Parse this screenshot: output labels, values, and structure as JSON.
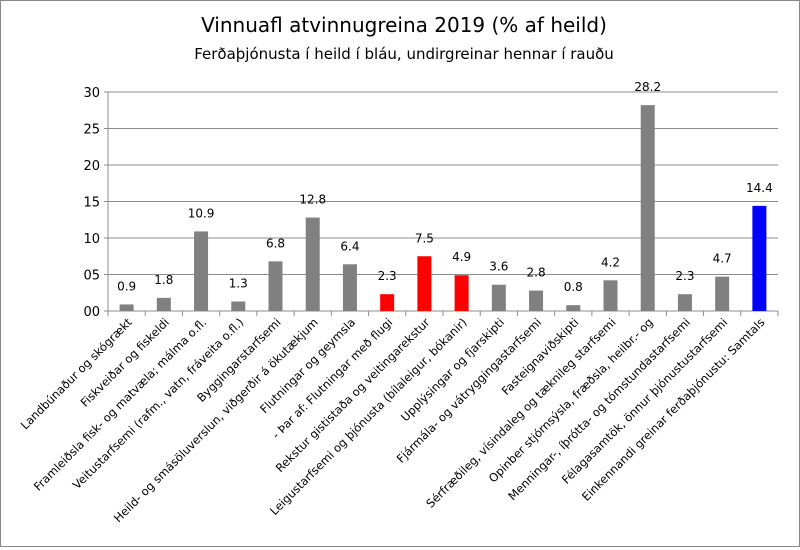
{
  "chart_data": {
    "type": "bar",
    "title": "Vinnuafl atvinnugreina 2019 (% af heild)",
    "subtitle": "Ferðaþjónusta í heild í bláu, undirgreinar hennar í rauðu",
    "xlabel": "",
    "ylabel": "",
    "ylim": [
      0,
      30
    ],
    "yticks": [
      "00",
      "05",
      "10",
      "15",
      "20",
      "25",
      "30"
    ],
    "grid": true,
    "legend": "none",
    "categories": [
      "Landbúnaður og skógrækt",
      "Fiskveiðar og fiskeldi",
      "Framleiðsla fisk- og matvæla; málma o.fl.",
      "Veitustarfsemi (rafm., vatn, fráveita o.fl.)",
      "Byggingarstarfsemi",
      "Heild- og smásöluverslun, viðgerðir á ökutækjum",
      "Flutningar og geymsla",
      "- Þar af:  Flutningar með flugi",
      "Rekstur gististaða og veitingarekstur",
      "Leigustarfsemi og þjónusta (bílaleigur, bókanir)",
      "Upplýsingar og fjarskipti",
      "Fjármála- og vátryggingastarfsemi",
      "Fasteignaviðskipti",
      "Sérfræðileg, vísindaleg og tæknileg starfsemi",
      "Opinber stjórnsýsla, fræðsla, heilbr.- og",
      "Menningar-, íþrótta- og tómstundastarfsemi",
      "Félagasamtök, önnur þjónustustarfsemi",
      "Einkennandi greinar ferðaþjónustu: Samtals"
    ],
    "values": [
      0.9,
      1.8,
      10.9,
      1.3,
      6.8,
      12.8,
      6.4,
      2.3,
      7.5,
      4.9,
      3.6,
      2.8,
      0.8,
      4.2,
      28.2,
      2.3,
      4.7,
      14.4
    ],
    "value_labels": [
      "0.9",
      "1.8",
      "10.9",
      "1.3",
      "6.8",
      "12.8",
      "6.4",
      "2.3",
      "7.5",
      "4.9",
      "3.6",
      "2.8",
      "0.8",
      "4.2",
      "28.2",
      "2.3",
      "4.7",
      "14.4"
    ],
    "bar_colors": [
      "#808080",
      "#808080",
      "#808080",
      "#808080",
      "#808080",
      "#808080",
      "#808080",
      "#ff0000",
      "#ff0000",
      "#ff0000",
      "#808080",
      "#808080",
      "#808080",
      "#808080",
      "#808080",
      "#808080",
      "#808080",
      "#0000ff"
    ]
  }
}
